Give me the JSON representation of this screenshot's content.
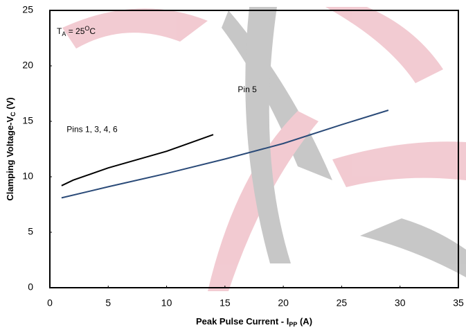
{
  "chart_data": {
    "type": "line",
    "xlabel": [
      "Peak Pulse Current - I",
      "PP",
      " (A)"
    ],
    "ylabel": [
      "Clamping Voltage-V",
      "C",
      " (V)"
    ],
    "annotation": [
      "T",
      "A",
      " = 25",
      "O",
      "C"
    ],
    "xlim": [
      0,
      35
    ],
    "xticks": [
      0,
      5,
      10,
      15,
      20,
      25,
      30,
      35
    ],
    "ylim": [
      0,
      25
    ],
    "yticks": [
      0,
      5,
      10,
      15,
      20,
      25
    ],
    "series": [
      {
        "name": "Pins 1, 3, 4, 6",
        "color": "#000000",
        "x": [
          1,
          2,
          5,
          10,
          14
        ],
        "values": [
          9.2,
          9.7,
          10.8,
          12.3,
          13.8
        ]
      },
      {
        "name": "Pin 5",
        "color": "#2a4a78",
        "x": [
          1,
          5,
          10,
          15,
          20,
          25,
          29
        ],
        "values": [
          8.1,
          9.1,
          10.3,
          11.6,
          13.0,
          14.7,
          16.0
        ]
      }
    ]
  }
}
